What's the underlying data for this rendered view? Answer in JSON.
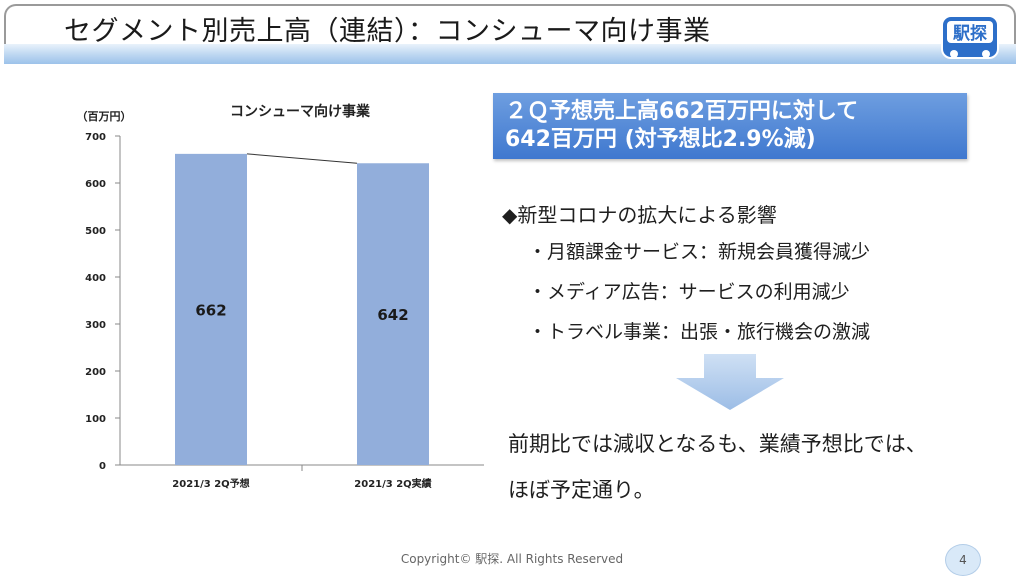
{
  "title": "セグメント別売上高（連結）：コンシューマ向け事業",
  "logo": {
    "text": "駅探"
  },
  "chart_data": {
    "type": "bar",
    "title": "コンシューマ向け事業",
    "ylabel": "（百万円）",
    "categories": [
      "2021/3 2Q予想",
      "2021/3 2Q実績"
    ],
    "values": [
      662,
      642
    ],
    "ylim": [
      0,
      700
    ],
    "yticks": [
      0,
      100,
      200,
      300,
      400,
      500,
      600,
      700
    ],
    "color": "#92aedb"
  },
  "summary": {
    "line1": "２Ｑ予想売上高662百万円に対して",
    "line2": "642百万円 (対予想比2.9%減)"
  },
  "impact": {
    "heading": "◆新型コロナの拡大による影響",
    "items": [
      "・月額課金サービス：新規会員獲得減少",
      "・メディア広告：サービスの利用減少",
      "・トラベル事業：出張・旅行機会の激減"
    ]
  },
  "conclusion": {
    "line1": "前期比では減収となるも、業績予想比では、",
    "line2": "ほぼ予定通り。"
  },
  "footer": "Copyright© 駅探. All Rights Reserved",
  "page_number": "4"
}
